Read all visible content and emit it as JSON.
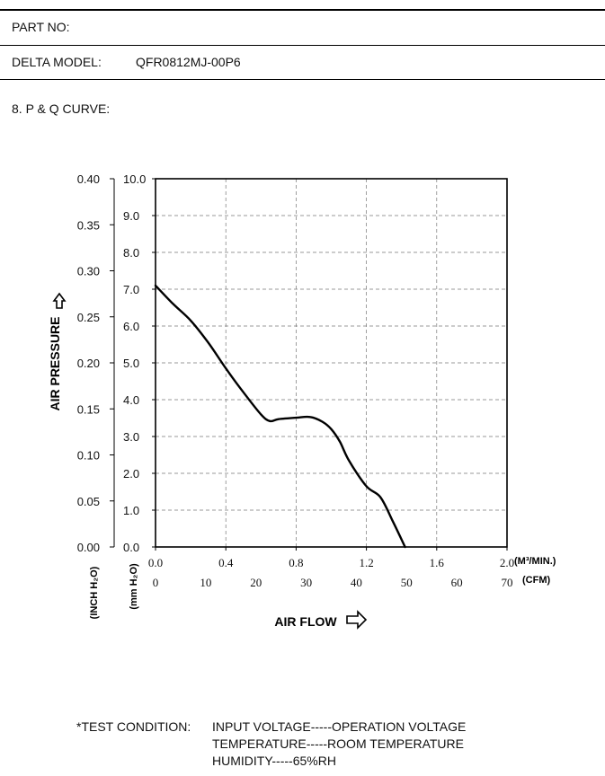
{
  "header": {
    "part_no_label": "PART NO:",
    "model_label": "DELTA MODEL:",
    "model_value": "QFR0812MJ-00P6"
  },
  "section_title": "8. P & Q CURVE:",
  "chart_data": {
    "type": "line",
    "title": "",
    "xlabel": "AIR FLOW",
    "ylabel": "AIR PRESSURE",
    "x_primary": {
      "unit_label": "(M³/MIN.)",
      "range": [
        0.0,
        2.0
      ],
      "tick_labels": [
        "0.0",
        "0.4",
        "0.8",
        "1.2",
        "1.6",
        "2.0"
      ]
    },
    "x_secondary": {
      "unit_label": "(CFM)",
      "range": [
        0,
        70
      ],
      "tick_labels": [
        "0",
        "10",
        "20",
        "30",
        "40",
        "50",
        "60",
        "70"
      ]
    },
    "y_primary": {
      "unit_label": "(mm H₂O)",
      "range": [
        0.0,
        10.0
      ],
      "tick_labels": [
        "0.0",
        "1.0",
        "2.0",
        "3.0",
        "4.0",
        "5.0",
        "6.0",
        "7.0",
        "8.0",
        "9.0",
        "10.0"
      ]
    },
    "y_secondary": {
      "unit_label": "(INCH H₂O)",
      "range": [
        0.0,
        0.4
      ],
      "tick_labels": [
        "0.00",
        "0.05",
        "0.10",
        "0.15",
        "0.20",
        "0.25",
        "0.30",
        "0.35",
        "0.40"
      ]
    },
    "grid": true,
    "series": [
      {
        "x": [
          0.0,
          0.1,
          0.2,
          0.3,
          0.4,
          0.5,
          0.6,
          0.65,
          0.7,
          0.8,
          0.88,
          0.95,
          1.0,
          1.05,
          1.1,
          1.2,
          1.28,
          1.35,
          1.42
        ],
        "y": [
          7.1,
          6.6,
          6.15,
          5.55,
          4.85,
          4.2,
          3.6,
          3.42,
          3.47,
          3.51,
          3.53,
          3.4,
          3.2,
          2.85,
          2.35,
          1.65,
          1.35,
          0.7,
          0.0
        ]
      }
    ]
  },
  "test_condition": {
    "label": "*TEST CONDITION:",
    "lines": [
      "INPUT VOLTAGE-----OPERATION VOLTAGE",
      "TEMPERATURE-----ROOM TEMPERATURE",
      "HUMIDITY-----65%RH"
    ]
  }
}
